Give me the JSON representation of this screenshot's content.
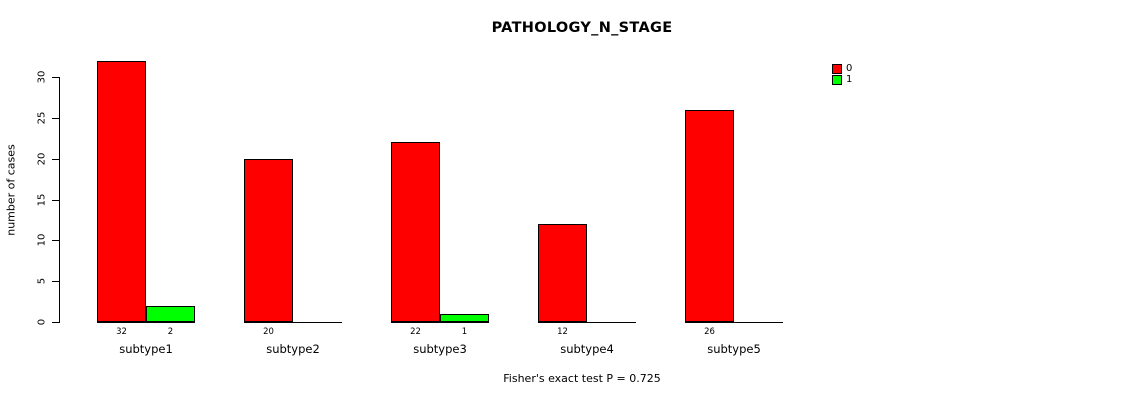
{
  "chart_data": {
    "type": "bar",
    "title": "PATHOLOGY_N_STAGE",
    "ylabel": "number of cases",
    "xlabel": "",
    "caption": "Fisher's exact test P = 0.725",
    "categories": [
      "subtype1",
      "subtype2",
      "subtype3",
      "subtype4",
      "subtype5"
    ],
    "series": [
      {
        "name": "0",
        "color": "#ff0000",
        "values": [
          32,
          20,
          22,
          12,
          26
        ]
      },
      {
        "name": "1",
        "color": "#00ff00",
        "values": [
          2,
          0,
          1,
          0,
          0
        ]
      }
    ],
    "yticks": [
      0,
      5,
      10,
      15,
      20,
      25,
      30
    ],
    "ylim": [
      0,
      30
    ],
    "grid": false,
    "legend_position": "top-right",
    "bar_count_labels_visible": true,
    "hide_zero_count_labels": true,
    "colors": {
      "background": "#ffffff",
      "axis": "#000000",
      "text": "#000000",
      "series0": "#ff0000",
      "series1": "#00ff00"
    }
  }
}
